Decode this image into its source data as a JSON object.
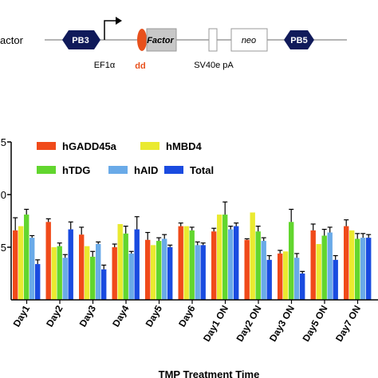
{
  "construct": {
    "title_fragment": "actor",
    "elements": [
      "PB3",
      "EF1α",
      "dd",
      "Factor",
      "SV40e pA",
      "neo",
      "PB5"
    ],
    "colors": {
      "pb": "#101a5a",
      "dd": "#e8501c",
      "factor_box": "#c8c8c8"
    }
  },
  "chart_data": {
    "type": "bar",
    "xlabel": "TMP Treatment Time",
    "ylabel": "",
    "yticks": [
      "5",
      "0",
      "5"
    ],
    "ylim": [
      0,
      15
    ],
    "categories": [
      "Day1",
      "Day2",
      "Day3",
      "Day4",
      "Day5",
      "Day6",
      "Day1 ON",
      "Day2 ON",
      "Day3 ON",
      "Day5 ON",
      "Day7 ON"
    ],
    "legend_position": "top",
    "series": [
      {
        "name": "hGADD45a",
        "color": "#f04a1a",
        "values": [
          6.6,
          7.4,
          6.2,
          5.0,
          5.7,
          7.0,
          6.5,
          5.7,
          4.4,
          6.6,
          7.0
        ],
        "errors": [
          1.2,
          0.3,
          0.7,
          0.3,
          0.7,
          0.3,
          0.3,
          0.1,
          0.3,
          0.6,
          0.6
        ]
      },
      {
        "name": "hMBD4",
        "color": "#eaea30",
        "values": [
          7.0,
          5.0,
          5.1,
          7.2,
          5.2,
          7.0,
          8.1,
          8.3,
          4.6,
          5.3,
          6.6
        ]
      },
      {
        "name": "hTDG",
        "color": "#62d62e",
        "values": [
          8.1,
          5.1,
          4.1,
          6.3,
          5.6,
          6.6,
          8.1,
          6.5,
          7.4,
          6.1,
          5.8
        ],
        "errors": [
          0.5,
          0.3,
          0.5,
          0.7,
          0.3,
          0.3,
          1.2,
          0.5,
          1.2,
          0.6,
          0.5
        ]
      },
      {
        "name": "hAID",
        "color": "#6aaae8",
        "values": [
          5.9,
          4.0,
          5.3,
          4.4,
          5.8,
          5.2,
          6.7,
          5.6,
          4.0,
          6.4,
          5.9
        ],
        "errors": [
          0.2,
          0.3,
          0.2,
          0.2,
          0.4,
          0.3,
          0.3,
          0.3,
          0.4,
          0.5,
          0.4
        ]
      },
      {
        "name": "Total",
        "color": "#1a4be0",
        "values": [
          3.4,
          6.7,
          2.9,
          6.7,
          5.0,
          5.2,
          7.0,
          3.8,
          2.5,
          3.8,
          5.9
        ],
        "errors": [
          0.4,
          0.7,
          0.4,
          1.2,
          0.2,
          0.2,
          0.3,
          0.4,
          0.2,
          0.4,
          0.3
        ]
      }
    ]
  }
}
